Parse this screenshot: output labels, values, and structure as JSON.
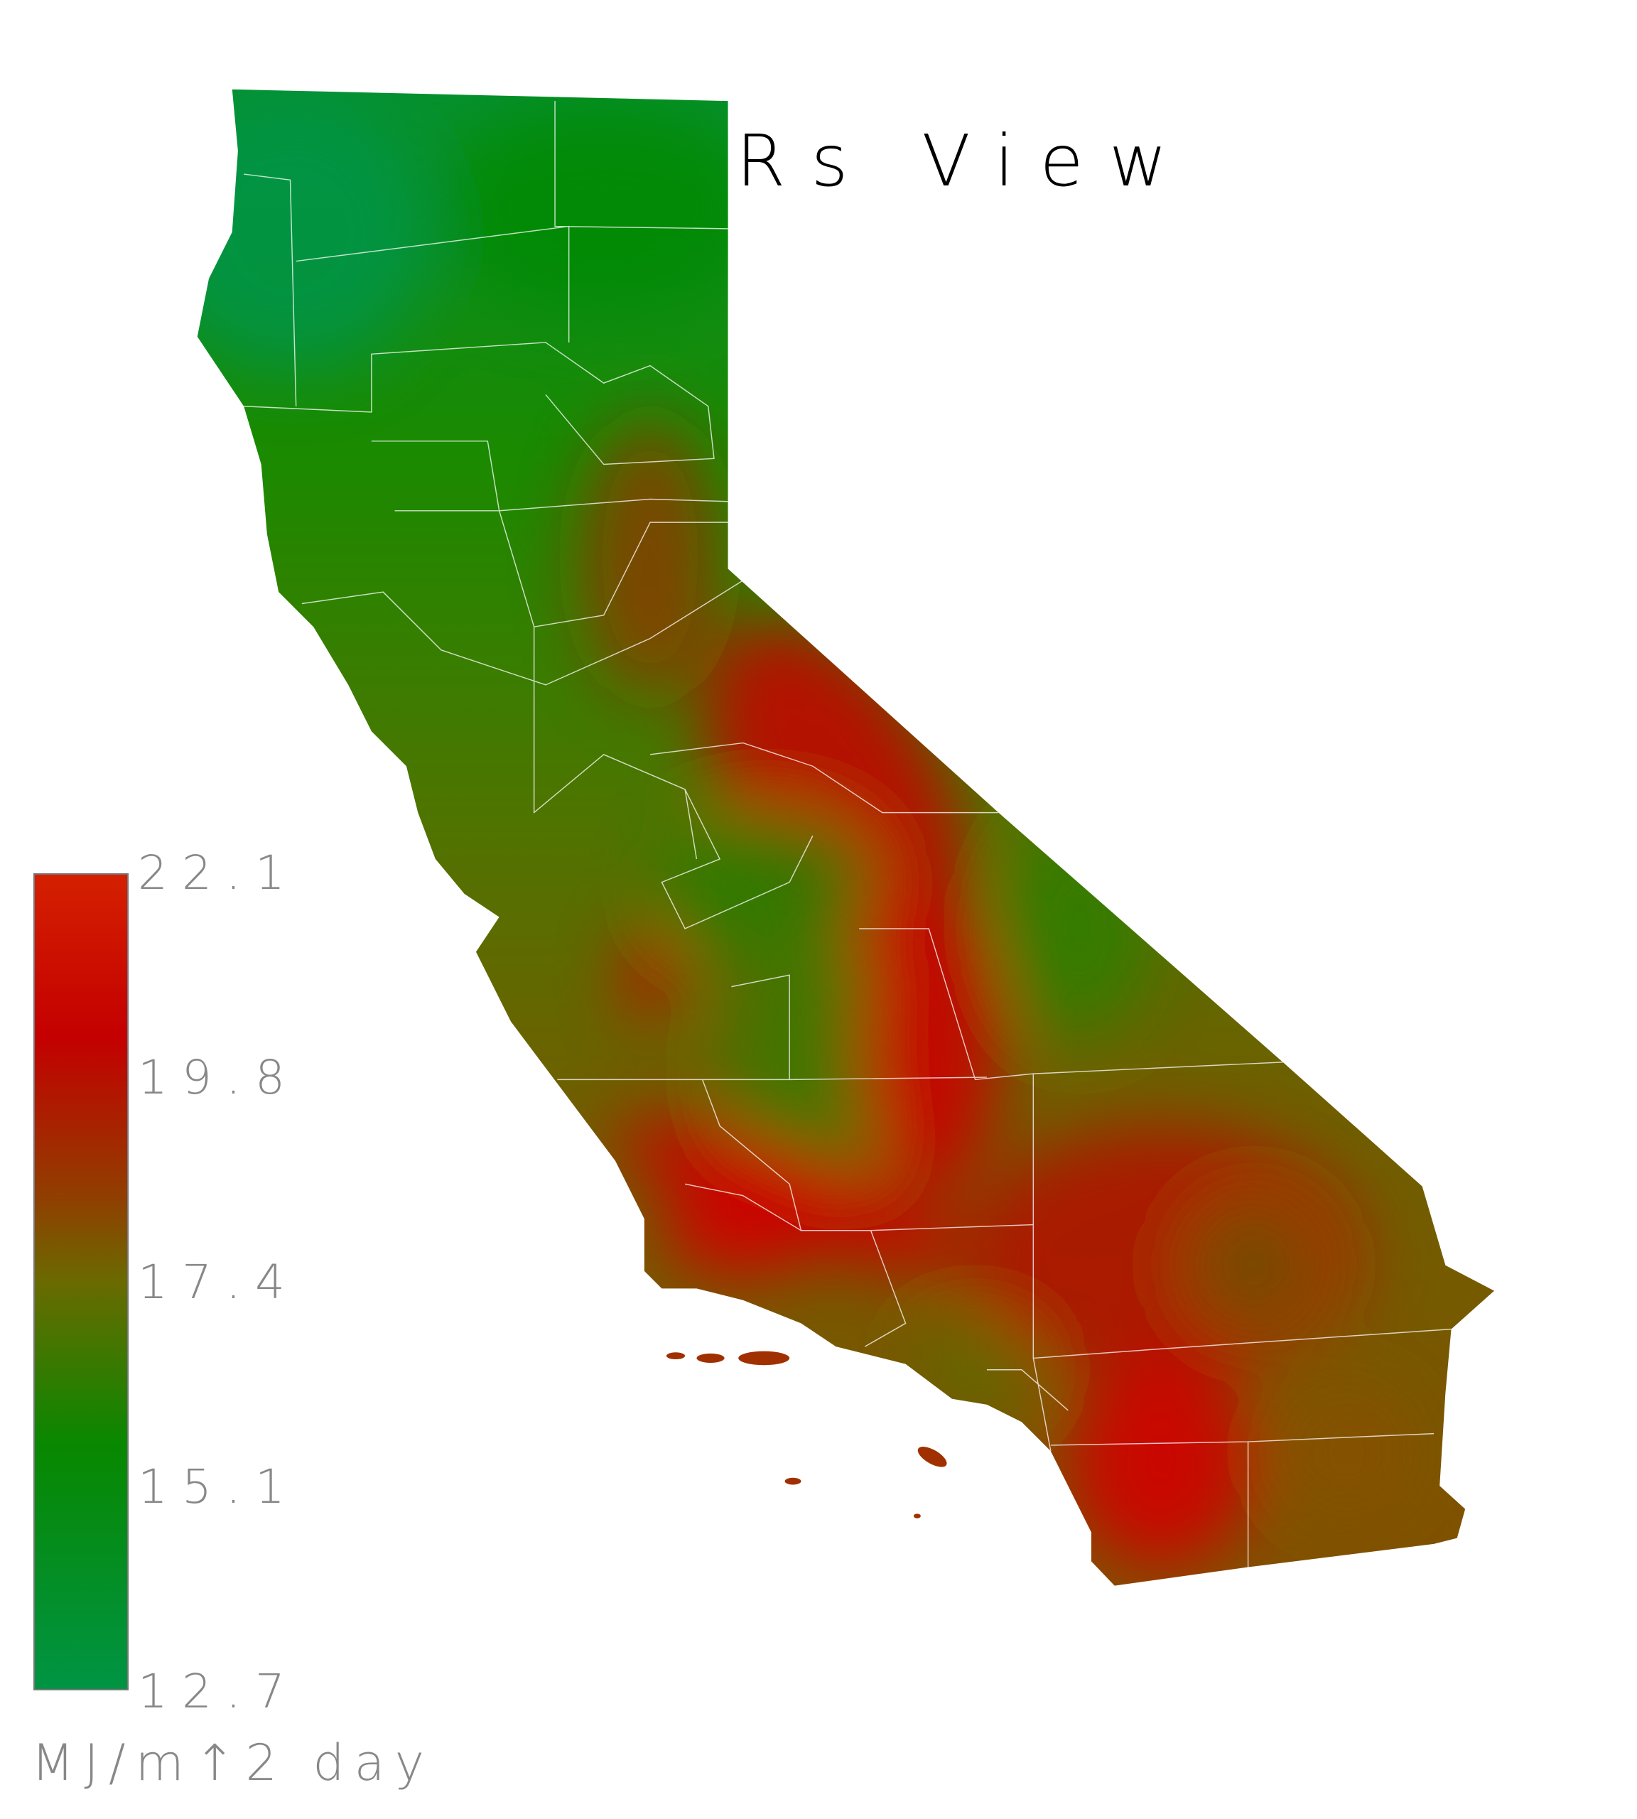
{
  "title": "Rs View",
  "chart_data": {
    "type": "heatmap",
    "title": "Rs View",
    "colorbar": {
      "ticks": [
        "22.1",
        "19.8",
        "17.4",
        "15.1",
        "12.7"
      ],
      "range": [
        12.7,
        22.1
      ],
      "units": "MJ/m↑2 day",
      "colors": {
        "low": "#009444",
        "mid_low": "#008800",
        "mid": "#6a6a00",
        "mid_high": "#c00000",
        "high": "#d42000"
      },
      "placement": "bottom-left"
    },
    "region": "California counties",
    "pattern": "low values (green) in the north and coast ranges, high values (red) in the Sierra Nevada, the southern deserts and the southern coastal mountains"
  }
}
